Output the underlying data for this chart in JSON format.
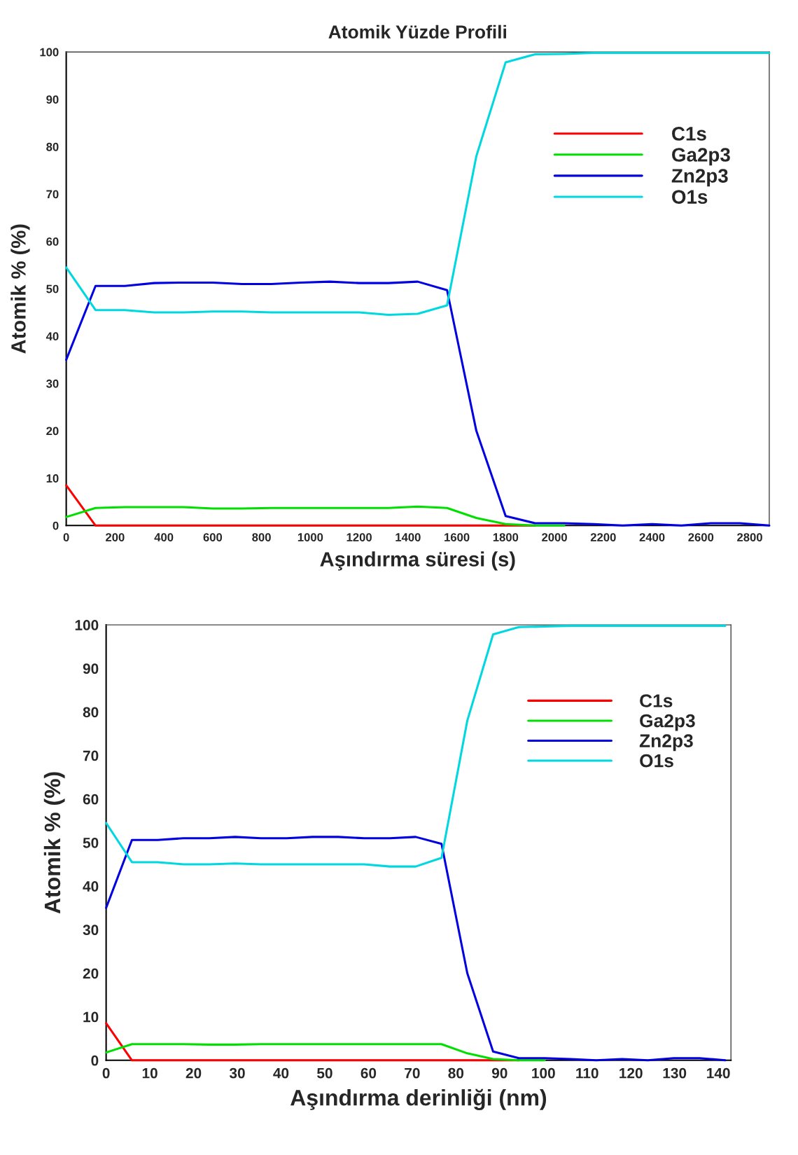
{
  "chart_data": [
    {
      "type": "line",
      "title": "Atomik Yüzde Profili",
      "xlabel": "Aşındırma süresi (s)",
      "ylabel": "Atomik % (%)",
      "x": [
        0,
        120,
        240,
        360,
        480,
        600,
        720,
        840,
        960,
        1080,
        1200,
        1320,
        1440,
        1560,
        1680,
        1800,
        1920,
        2040,
        2160,
        2280,
        2400,
        2520,
        2640,
        2760,
        2880
      ],
      "series": [
        {
          "name": "C1s",
          "color": "#ff0000",
          "values": [
            8.5,
            0,
            0,
            0,
            0,
            0,
            0,
            0,
            0,
            0,
            0,
            0,
            0,
            0,
            0,
            0,
            0,
            null,
            null,
            null,
            null,
            null,
            null,
            null,
            null
          ]
        },
        {
          "name": "Ga2p3",
          "color": "#00e000",
          "values": [
            1.8,
            3.7,
            3.9,
            3.9,
            3.9,
            3.6,
            3.6,
            3.7,
            3.7,
            3.7,
            3.7,
            3.7,
            4.0,
            3.7,
            1.6,
            0.3,
            0,
            0,
            null,
            null,
            null,
            null,
            null,
            null,
            null
          ]
        },
        {
          "name": "Zn2p3",
          "color": "#0000e0",
          "values": [
            35,
            50.6,
            50.6,
            51.2,
            51.3,
            51.3,
            51.0,
            51.0,
            51.3,
            51.5,
            51.2,
            51.2,
            51.5,
            49.7,
            20,
            2,
            0.5,
            0.5,
            0.3,
            0,
            0.3,
            0,
            0.5,
            0.5,
            0
          ]
        },
        {
          "name": "O1s",
          "color": "#00d8e0",
          "values": [
            54.5,
            45.5,
            45.5,
            45.0,
            45.0,
            45.2,
            45.2,
            45.0,
            45.0,
            45.0,
            45.0,
            44.5,
            44.7,
            46.5,
            78,
            97.8,
            99.5,
            99.6,
            99.8,
            99.8,
            99.8,
            99.8,
            99.8,
            99.8,
            99.8
          ]
        }
      ],
      "xlim": [
        0,
        2880
      ],
      "xticks": [
        0,
        200,
        400,
        600,
        800,
        1000,
        1200,
        1400,
        1600,
        1800,
        2000,
        2200,
        2400,
        2600,
        2800
      ],
      "ylim": [
        0,
        100
      ],
      "yticks": [
        0,
        10,
        20,
        30,
        40,
        50,
        60,
        70,
        80,
        90,
        100
      ],
      "legend": "top right",
      "grid": false
    },
    {
      "type": "line",
      "xlabel": "Aşındırma derinliği (nm)",
      "ylabel": "Atomik % (%)",
      "x": [
        0,
        5.9,
        11.8,
        17.7,
        23.6,
        29.5,
        35.4,
        41.3,
        47.2,
        53.1,
        59.0,
        64.9,
        70.8,
        76.7,
        82.6,
        88.5,
        94.4,
        100.3,
        106.2,
        112.1,
        118.0,
        123.9,
        129.8,
        135.7,
        141.6
      ],
      "series": [
        {
          "name": "C1s",
          "color": "#ff0000",
          "values": [
            8.5,
            0,
            0,
            0,
            0,
            0,
            0,
            0,
            0,
            0,
            0,
            0,
            0,
            0,
            0,
            0,
            0,
            null,
            null,
            null,
            null,
            null,
            null,
            null,
            null
          ]
        },
        {
          "name": "Ga2p3",
          "color": "#00e000",
          "values": [
            1.8,
            3.7,
            3.7,
            3.7,
            3.6,
            3.6,
            3.7,
            3.7,
            3.7,
            3.7,
            3.7,
            3.7,
            3.7,
            3.7,
            1.6,
            0.3,
            0,
            0,
            null,
            null,
            null,
            null,
            null,
            null,
            null
          ]
        },
        {
          "name": "Zn2p3",
          "color": "#0000e0",
          "values": [
            35,
            50.6,
            50.6,
            51.0,
            51.0,
            51.3,
            51.0,
            51.0,
            51.3,
            51.3,
            51.0,
            51.0,
            51.3,
            49.7,
            20,
            2,
            0.5,
            0.5,
            0.3,
            0,
            0.3,
            0,
            0.5,
            0.5,
            0
          ]
        },
        {
          "name": "O1s",
          "color": "#00d8e0",
          "values": [
            54.5,
            45.5,
            45.5,
            45.0,
            45.0,
            45.2,
            45.0,
            45.0,
            45.0,
            45.0,
            45.0,
            44.5,
            44.5,
            46.5,
            78,
            97.8,
            99.5,
            99.6,
            99.8,
            99.8,
            99.8,
            99.8,
            99.8,
            99.8,
            99.8
          ]
        }
      ],
      "xlim": [
        0,
        142.9
      ],
      "xticks": [
        0,
        10,
        20,
        30,
        40,
        50,
        60,
        70,
        80,
        90,
        100,
        110,
        120,
        130,
        140
      ],
      "ylim": [
        0,
        100
      ],
      "yticks": [
        0,
        10,
        20,
        30,
        40,
        50,
        60,
        70,
        80,
        90,
        100
      ],
      "legend": "top right",
      "grid": false
    }
  ]
}
